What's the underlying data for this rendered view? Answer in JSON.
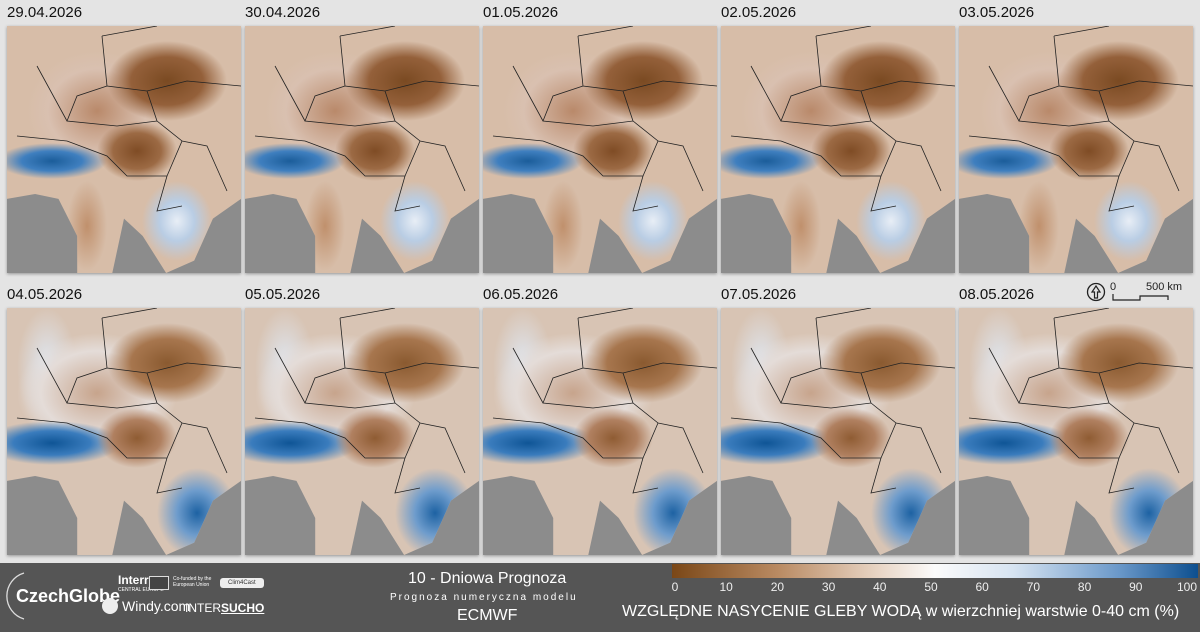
{
  "panels": [
    {
      "date": "29.04.2026"
    },
    {
      "date": "30.04.2026"
    },
    {
      "date": "01.05.2026"
    },
    {
      "date": "02.05.2026"
    },
    {
      "date": "03.05.2026"
    },
    {
      "date": "04.05.2026"
    },
    {
      "date": "05.05.2026"
    },
    {
      "date": "06.05.2026"
    },
    {
      "date": "07.05.2026"
    },
    {
      "date": "08.05.2026"
    }
  ],
  "scale": {
    "zero": "0",
    "distance": "500 km"
  },
  "footer": {
    "logos": {
      "czechglobe": "CzechGlobe",
      "interreg": "Interreg",
      "interreg_sub": "CENTRAL EUROPE",
      "eu": "Co-funded by the European Union",
      "clim4cast": "Clim4Cast",
      "windy": "Windy.com",
      "intersucho_a": "INTER",
      "intersucho_b": "SUCHO"
    },
    "title": "10 - Dniowa Prognoza",
    "subtitle": "Prognoza numeryczna modelu",
    "model": "ECMWF"
  },
  "legend": {
    "ticks": [
      "0",
      "10",
      "20",
      "30",
      "40",
      "50",
      "60",
      "70",
      "80",
      "90",
      "100"
    ],
    "title": "WZGLĘDNE NASYCENIE GLEBY WODĄ w wierzchniej warstwie 0-40 cm (%)",
    "colors": [
      "#7a4717",
      "#fbfbfb",
      "#0d4f8f"
    ]
  }
}
